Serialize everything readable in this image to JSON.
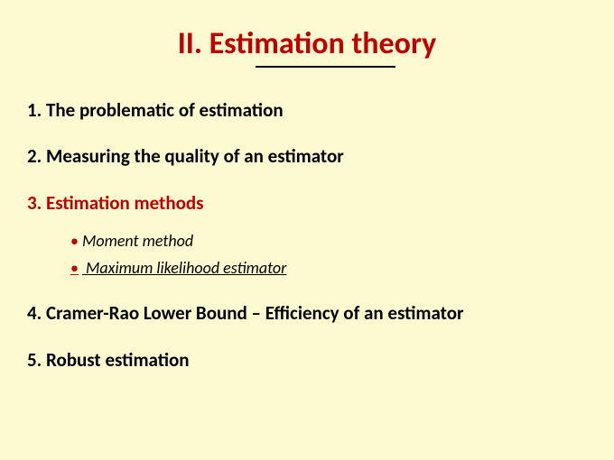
{
  "slide": {
    "title": "II. Estimation theory",
    "title_color": "#c00000",
    "title_fontsize": 34,
    "background_color": "#fdfad1",
    "underline_color": "#000000",
    "underline_width": 155,
    "item_fontsize": 21,
    "item_color": "#000000",
    "highlighted_color": "#c00000",
    "subitem_fontsize": 18,
    "bullet_color": "#c00000",
    "items": [
      {
        "text": "1. The problematic of estimation",
        "highlighted": false,
        "sub_items": []
      },
      {
        "text": "2. Measuring the quality of an estimator",
        "highlighted": false,
        "sub_items": []
      },
      {
        "text": "3. Estimation methods",
        "highlighted": true,
        "sub_items": [
          {
            "text": "Moment method",
            "underlined": false
          },
          {
            "text": " Maximum likelihood estimator",
            "underlined": true
          }
        ]
      },
      {
        "text": "4. Cramer-Rao Lower Bound – Efficiency of an estimator",
        "highlighted": false,
        "sub_items": []
      },
      {
        "text": "5. Robust estimation",
        "highlighted": false,
        "sub_items": []
      }
    ]
  }
}
